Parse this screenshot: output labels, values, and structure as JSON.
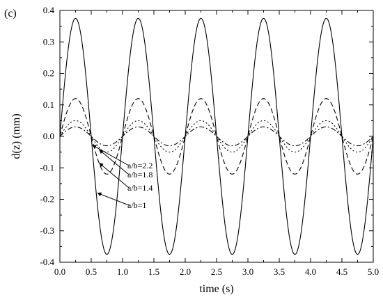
{
  "chart_data": {
    "type": "line",
    "panel_label": "(c)",
    "xlabel": "time (s)",
    "ylabel": "d(z) (mm)",
    "xlim": [
      0.0,
      5.0
    ],
    "ylim": [
      -0.4,
      0.4
    ],
    "x_ticks": [
      "0.0",
      "0.5",
      "1.0",
      "1.5",
      "2.0",
      "2.5",
      "3.0",
      "3.5",
      "4.0",
      "4.5",
      "5.0"
    ],
    "y_ticks": [
      "-0.4",
      "-0.3",
      "-0.2",
      "-0.1",
      "0.0",
      "0.1",
      "0.2",
      "0.3",
      "0.4"
    ],
    "grid": false,
    "series": [
      {
        "name": "a/b=1",
        "amplitude": 0.375,
        "period": 1.0,
        "style": "solid"
      },
      {
        "name": "a/b=1.4",
        "amplitude": 0.12,
        "period": 1.0,
        "style": "dashed"
      },
      {
        "name": "a/b=1.8",
        "amplitude": 0.05,
        "period": 1.0,
        "style": "dotted"
      },
      {
        "name": "a/b=2.2",
        "amplitude": 0.03,
        "period": 1.0,
        "style": "dashdot"
      }
    ],
    "annotations": [
      {
        "text": "a/b=2.2",
        "target_x": 0.52,
        "target_y": -0.028
      },
      {
        "text": "a/b=1.8",
        "target_x": 0.63,
        "target_y": -0.043
      },
      {
        "text": "a/b=1.4",
        "target_x": 0.63,
        "target_y": -0.085
      },
      {
        "text": "a/b=1",
        "target_x": 0.6,
        "target_y": -0.18
      }
    ]
  }
}
